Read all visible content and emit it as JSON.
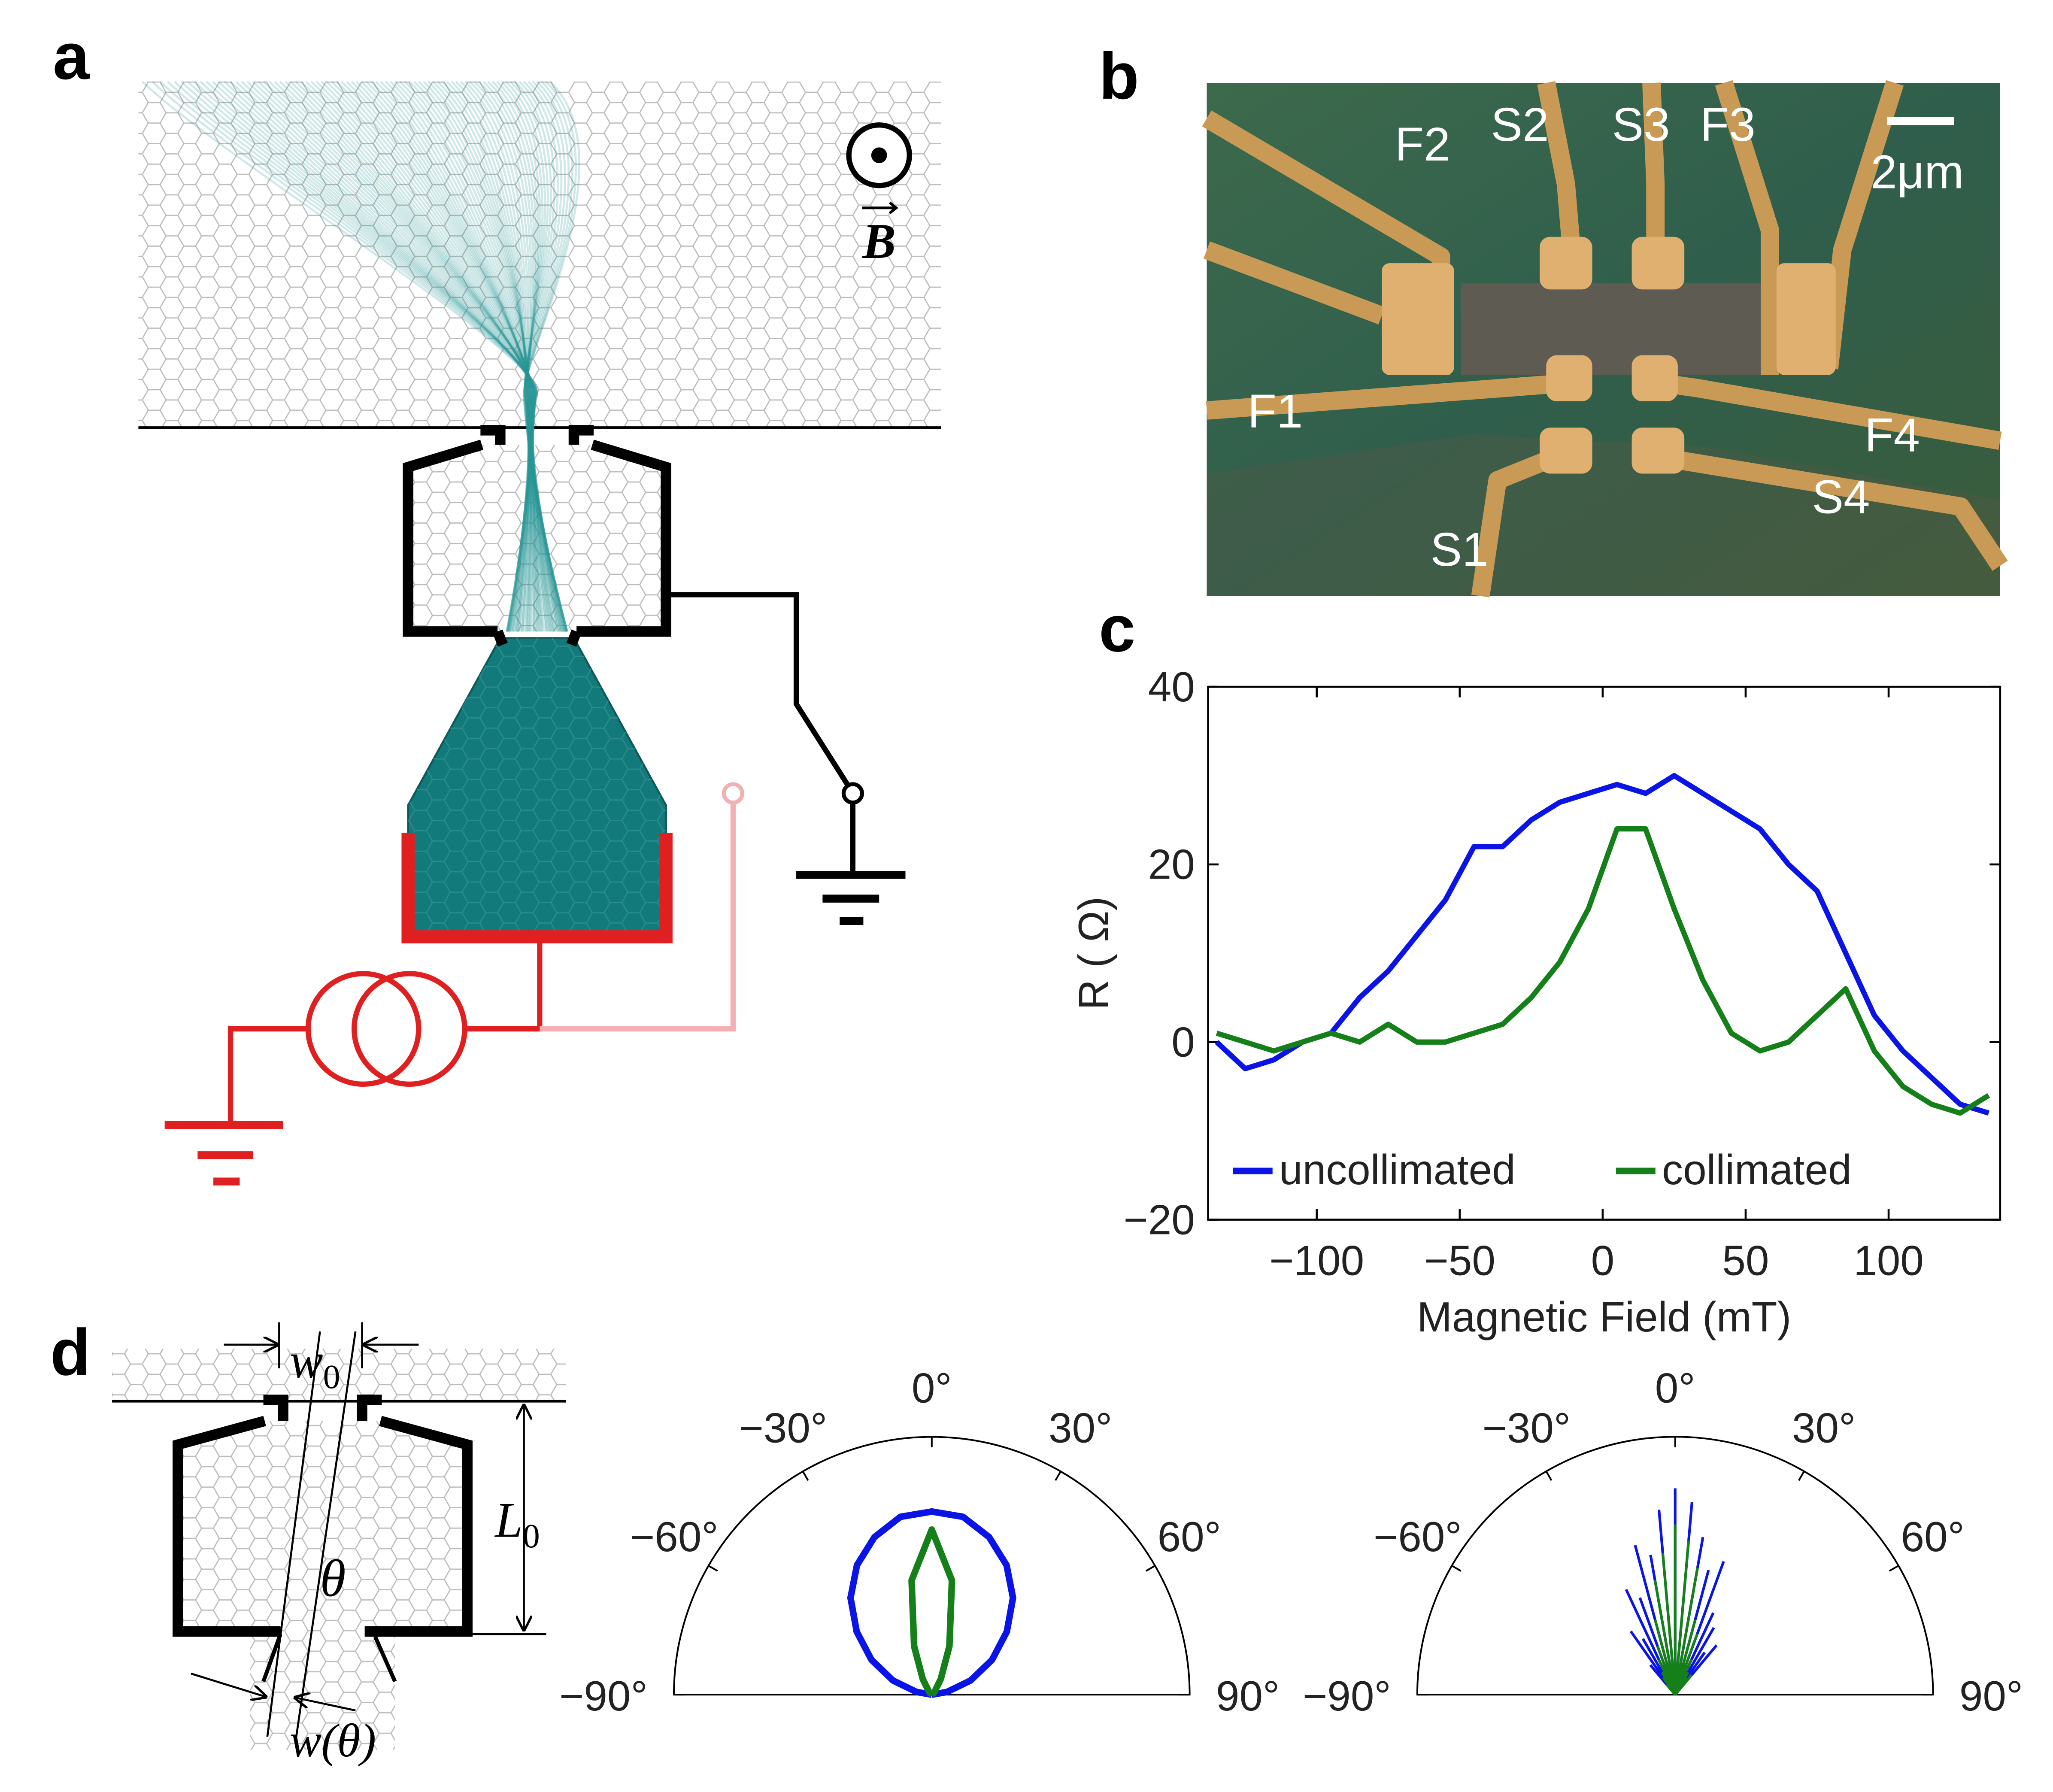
{
  "panel_labels": [
    "a",
    "b",
    "c",
    "d"
  ],
  "panel_a": {
    "field_label": "B"
  },
  "panel_b": {
    "labels": [
      "F1",
      "F2",
      "S2",
      "S3",
      "F3",
      "F4",
      "S4",
      "S1"
    ],
    "scale_bar": "2μm"
  },
  "panel_d": {
    "w0": {
      "base": "w",
      "sub": "0"
    },
    "L0": {
      "base": "L",
      "sub": "0"
    },
    "theta": "θ",
    "w_theta": "w(θ)"
  },
  "chart_data": [
    {
      "type": "line",
      "xlabel": "Magnetic Field (mT)",
      "ylabel": "R ( Ω)",
      "xlim": [
        -138,
        139
      ],
      "ylim": [
        -20,
        40
      ],
      "xticks": [
        {
          "value": -100,
          "label": "−100"
        },
        {
          "value": -50,
          "label": "−50"
        },
        0,
        50,
        100
      ],
      "yticks": [
        {
          "value": -20,
          "label": "−20"
        },
        0,
        20,
        40
      ],
      "x": [
        -135,
        -125,
        -115,
        -105,
        -95,
        -85,
        -75,
        -65,
        -55,
        -45,
        -35,
        -25,
        -15,
        -5,
        5,
        15,
        25,
        35,
        45,
        55,
        65,
        75,
        85,
        95,
        105,
        115,
        125,
        135
      ],
      "series": [
        {
          "name": "uncollimated",
          "color": "#0a14e6",
          "values": [
            0,
            -3,
            -2,
            0,
            1,
            5,
            8,
            12,
            16,
            22,
            22,
            25,
            27,
            28,
            29,
            28,
            30,
            28,
            26,
            24,
            20,
            17,
            10,
            3,
            -1,
            -4,
            -7,
            -8
          ]
        },
        {
          "name": "collimated",
          "color": "#15801a",
          "values": [
            1,
            0,
            -1,
            0,
            1,
            0,
            2,
            0,
            0,
            1,
            2,
            5,
            9,
            15,
            24,
            24,
            15,
            7,
            1,
            -1,
            0,
            3,
            6,
            -1,
            -5,
            -7,
            -8,
            -6
          ]
        }
      ]
    },
    {
      "type": "polar",
      "xlim": [
        -90,
        90
      ],
      "ylim": [
        0,
        1
      ],
      "xticks": [
        {
          "value": -90,
          "label": "−90°"
        },
        {
          "value": -60,
          "label": "−60°"
        },
        {
          "value": -30,
          "label": "−30°"
        },
        {
          "value": 0,
          "label": "0°"
        },
        {
          "value": 30,
          "label": "30°"
        },
        {
          "value": 60,
          "label": "60°"
        },
        {
          "value": 90,
          "label": "90°"
        }
      ],
      "x": [
        -90,
        -80,
        -70,
        -60,
        -50,
        -40,
        -30,
        -20,
        -10,
        0,
        10,
        20,
        30,
        40,
        50,
        60,
        70,
        80,
        90
      ],
      "series": [
        {
          "color": "#0a14e6",
          "values": [
            0,
            0.06,
            0.16,
            0.27,
            0.38,
            0.49,
            0.58,
            0.65,
            0.7,
            0.71,
            0.7,
            0.65,
            0.58,
            0.49,
            0.38,
            0.27,
            0.16,
            0.06,
            0
          ]
        },
        {
          "color": "#15801a",
          "values": [
            0,
            0,
            0,
            0,
            0.01,
            0.02,
            0.07,
            0.2,
            0.45,
            0.64,
            0.45,
            0.2,
            0.07,
            0.02,
            0.01,
            0,
            0,
            0,
            0
          ]
        }
      ]
    },
    {
      "type": "polar-spikes",
      "xlim": [
        -90,
        90
      ],
      "ylim": [
        0,
        1
      ],
      "xticks": [
        {
          "value": -90,
          "label": "−90°"
        },
        {
          "value": -60,
          "label": "−60°"
        },
        {
          "value": -30,
          "label": "−30°"
        },
        {
          "value": 0,
          "label": "0°"
        },
        {
          "value": 30,
          "label": "30°"
        },
        {
          "value": 60,
          "label": "60°"
        },
        {
          "value": 90,
          "label": "90°"
        }
      ],
      "x": [
        -40,
        -35,
        -30,
        -25,
        -20,
        -15,
        -10,
        -5,
        0,
        5,
        10,
        15,
        20,
        25,
        30,
        35,
        40
      ],
      "series": [
        {
          "color": "#0a14e6",
          "values": [
            0.15,
            0.3,
            0.25,
            0.45,
            0.4,
            0.6,
            0.55,
            0.72,
            0.8,
            0.75,
            0.62,
            0.5,
            0.55,
            0.35,
            0.3,
            0.2,
            0.25
          ]
        },
        {
          "color": "#15801a",
          "values": [
            0.05,
            0.08,
            0.1,
            0.15,
            0.2,
            0.3,
            0.45,
            0.55,
            0.66,
            0.6,
            0.5,
            0.3,
            0.25,
            0.15,
            0.1,
            0.08,
            0.1
          ]
        }
      ]
    }
  ]
}
